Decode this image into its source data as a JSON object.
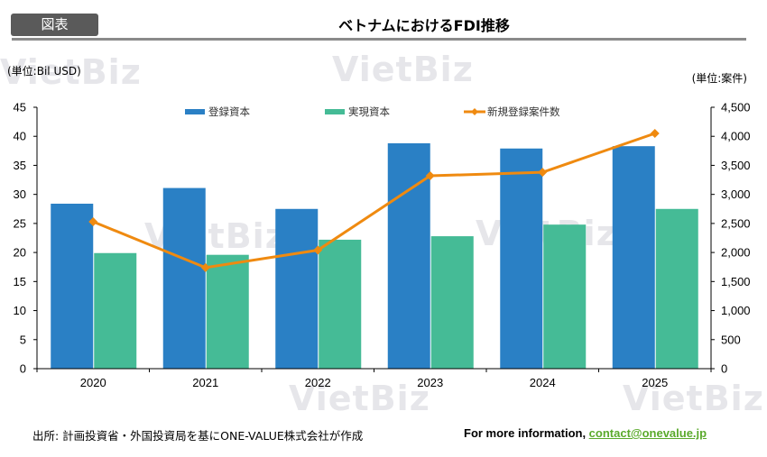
{
  "header": {
    "badge": "図表",
    "title": "ベトナムにおけるFDI推移"
  },
  "units": {
    "left": "(単位:Bil USD)",
    "right": "(単位:案件)"
  },
  "watermark": "VietBiz",
  "colors": {
    "registered": "#2a80c5",
    "realized": "#45bb96",
    "projects": "#ef8a10",
    "badge": "#5a5a5a",
    "link": "#5aaa2c"
  },
  "chart_data": {
    "type": "bar",
    "title": "ベトナムにおけるFDI推移",
    "categories": [
      "2020",
      "2021",
      "2022",
      "2023",
      "2024",
      "2025"
    ],
    "series": [
      {
        "name": "登録資本",
        "type": "bar",
        "axis": "left",
        "values": [
          28.4,
          31.1,
          27.5,
          38.8,
          37.9,
          38.3
        ]
      },
      {
        "name": "実現資本",
        "type": "bar",
        "axis": "left",
        "values": [
          19.9,
          19.6,
          22.2,
          22.8,
          24.8,
          27.5
        ]
      },
      {
        "name": "新規登録案件数",
        "type": "line",
        "axis": "right",
        "values": [
          2530,
          1740,
          2040,
          3320,
          3380,
          4050
        ]
      }
    ],
    "ylabel": "(単位:Bil USD)",
    "y2label": "(単位:案件)",
    "ylim": [
      0,
      45
    ],
    "y2lim": [
      0,
      4500
    ],
    "yticks": [
      "0",
      "5",
      "10",
      "15",
      "20",
      "25",
      "30",
      "35",
      "40",
      "45"
    ],
    "y2ticks": [
      "0",
      "500",
      "1,000",
      "1,500",
      "2,000",
      "2,500",
      "3,000",
      "3,500",
      "4,000",
      "4,500"
    ],
    "grid": false,
    "legend": "top-center"
  },
  "footer": {
    "source": "出所: 計画投資省・外国投資局を基にONE-VALUE株式会社が作成",
    "info_prefix": "For more information, ",
    "email": "contact@onevalue.jp"
  }
}
